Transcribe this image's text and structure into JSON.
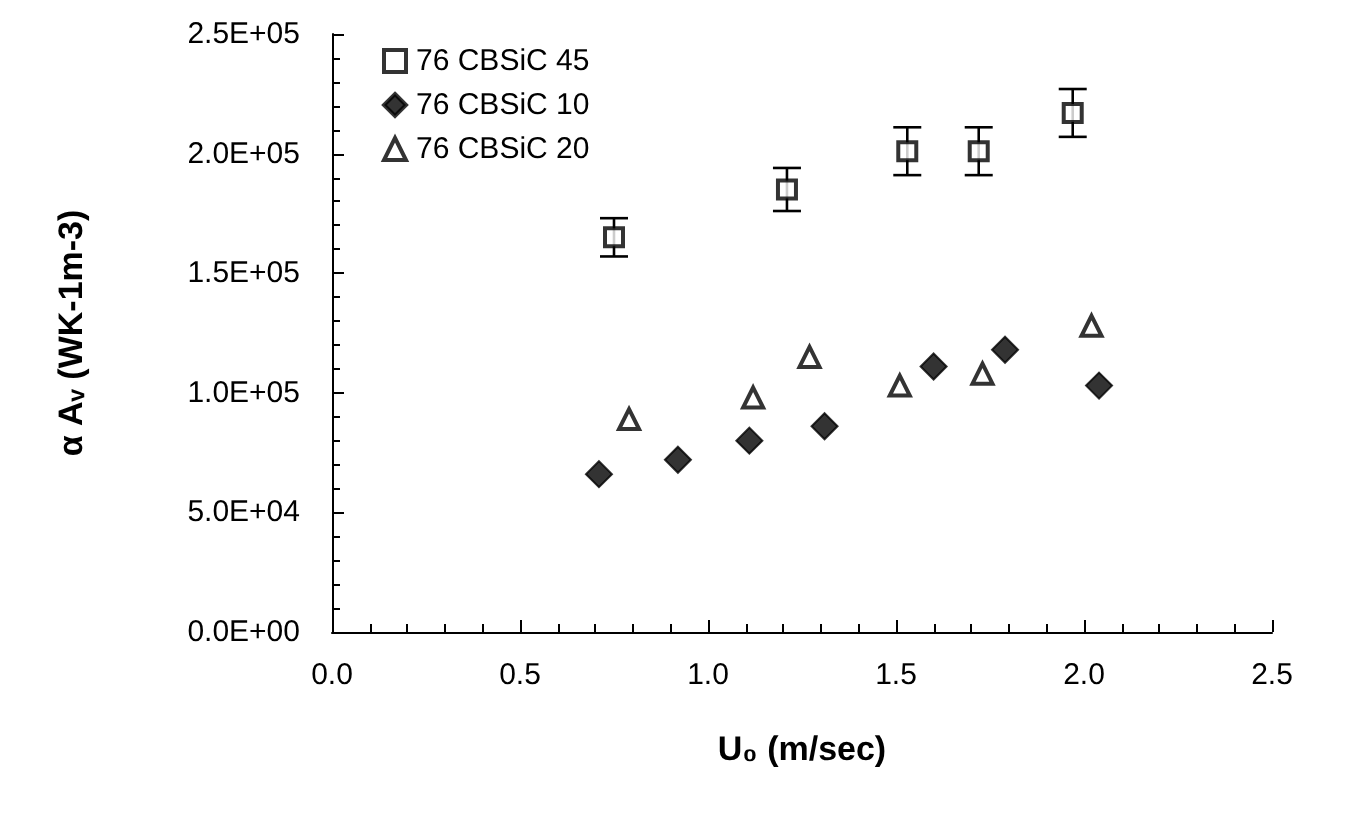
{
  "chart_data": {
    "type": "scatter",
    "xlabel": "U₀ (m/sec)",
    "ylabel": "α Aᵥ (WK-1m-3)",
    "xlim": [
      0,
      2.5
    ],
    "xticks": [
      {
        "value": 0,
        "label": "0.0"
      },
      {
        "value": 0.5,
        "label": "0.5"
      },
      {
        "value": 1,
        "label": "1.0"
      },
      {
        "value": 1.5,
        "label": "1.5"
      },
      {
        "value": 2,
        "label": "2.0"
      },
      {
        "value": 2.5,
        "label": "2.5"
      }
    ],
    "ylim": [
      0,
      250000
    ],
    "yticks": [
      {
        "value": 0,
        "label": "0.0E+00"
      },
      {
        "value": 50000,
        "label": "5.0E+04"
      },
      {
        "value": 100000,
        "label": "1.0E+05"
      },
      {
        "value": 150000,
        "label": "1.5E+05"
      },
      {
        "value": 200000,
        "label": "2.0E+05"
      },
      {
        "value": 250000,
        "label": "2.5E+05"
      }
    ],
    "grid": false,
    "legend": "top left",
    "series": [
      {
        "name": "76 CBSiC 45",
        "color": "#000000",
        "marker": "square",
        "x": [
          0.75,
          1.21,
          1.53,
          1.72,
          1.97
        ],
        "values": [
          165000,
          185000,
          201000,
          201000,
          217000
        ],
        "errors": [
          8000,
          9000,
          10000,
          10000,
          10000
        ]
      },
      {
        "name": "76 CBSiC 10",
        "color": "#000000",
        "marker": "diamond",
        "x": [
          0.71,
          0.92,
          1.11,
          1.31,
          1.6,
          1.79,
          2.04
        ],
        "values": [
          66000,
          72000,
          80000,
          86000,
          111000,
          118000,
          103000
        ]
      },
      {
        "name": "76 CBSiC 20",
        "color": "#000000",
        "marker": "triangle",
        "x": [
          0.79,
          1.12,
          1.27,
          1.51,
          1.73,
          2.02
        ],
        "values": [
          89000,
          98000,
          115000,
          103000,
          108000,
          128000
        ]
      }
    ]
  }
}
